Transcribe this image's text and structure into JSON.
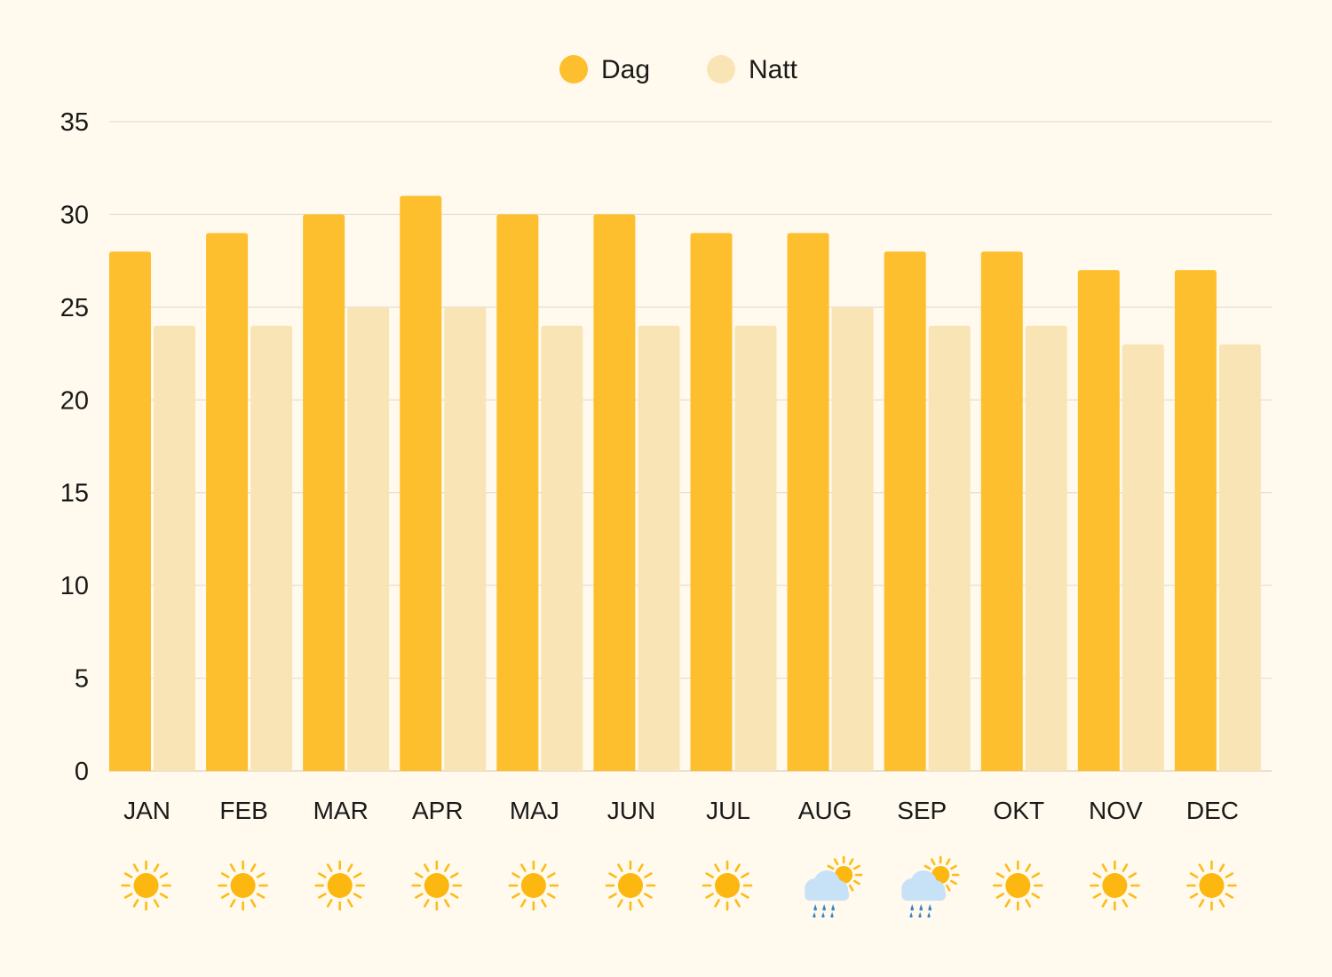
{
  "chart_data": {
    "type": "bar",
    "categories": [
      "JAN",
      "FEB",
      "MAR",
      "APR",
      "MAJ",
      "JUN",
      "JUL",
      "AUG",
      "SEP",
      "OKT",
      "NOV",
      "DEC"
    ],
    "series": [
      {
        "name": "Dag",
        "color": "#fdbf2e",
        "values": [
          28,
          29,
          30,
          31,
          30,
          30,
          29,
          29,
          28,
          28,
          27,
          27
        ]
      },
      {
        "name": "Natt",
        "color": "#f9e4b6",
        "values": [
          24,
          24,
          25,
          25,
          24,
          24,
          24,
          25,
          24,
          24,
          23,
          23
        ]
      }
    ],
    "ylim": [
      0,
      35
    ],
    "yticks": [
      0,
      5,
      10,
      15,
      20,
      25,
      30,
      35
    ],
    "grid": true,
    "legend": "top-center",
    "weather_icons": [
      "sun-icon",
      "sun-icon",
      "sun-icon",
      "sun-icon",
      "sun-icon",
      "sun-icon",
      "sun-icon",
      "rain-cloud-sun-icon",
      "rain-cloud-sun-icon",
      "sun-icon",
      "sun-icon",
      "sun-icon"
    ]
  }
}
